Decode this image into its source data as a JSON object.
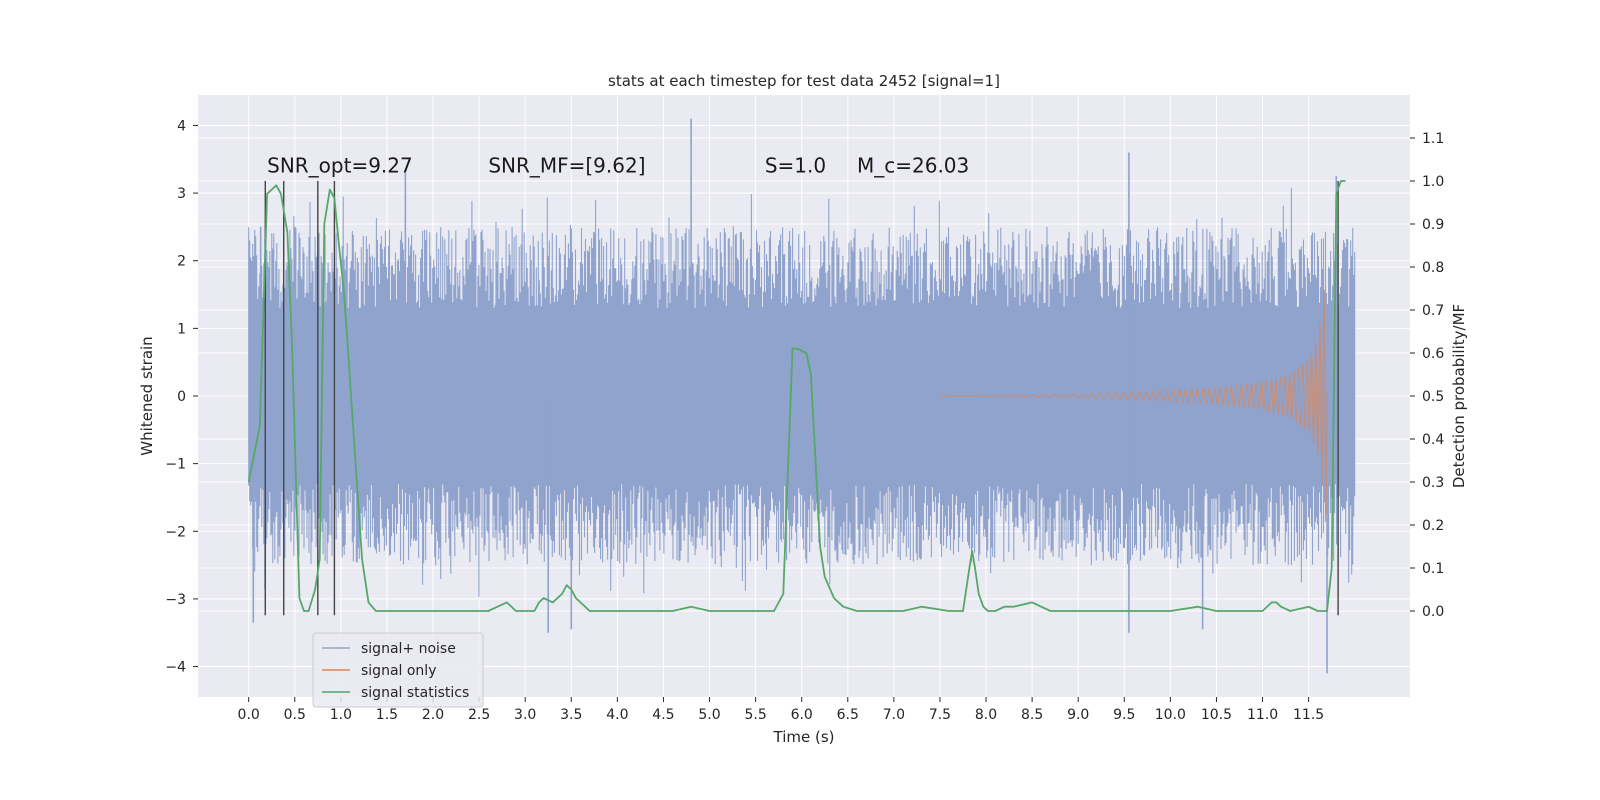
{
  "chart_data": {
    "type": "line",
    "title": "stats at each timestep for test data 2452 [signal=1]",
    "xlabel": "Time (s)",
    "ylabel": "Whitened strain",
    "y2label": "Detection probability/MF",
    "xlim": [
      -0.55,
      12.6
    ],
    "ylim": [
      -4.45,
      4.45
    ],
    "y2lim": [
      -0.2,
      1.2
    ],
    "x_ticks": [
      "0.0",
      "0.5",
      "1.0",
      "1.5",
      "2.0",
      "2.5",
      "3.0",
      "3.5",
      "4.0",
      "4.5",
      "5.0",
      "5.5",
      "6.0",
      "6.5",
      "7.0",
      "7.5",
      "8.0",
      "8.5",
      "9.0",
      "9.5",
      "10.0",
      "10.5",
      "11.0",
      "11.5"
    ],
    "y_ticks": [
      "4",
      "3",
      "2",
      "1",
      "0",
      "−1",
      "−2",
      "−3",
      "−4"
    ],
    "y_tick_values": [
      4,
      3,
      2,
      1,
      0,
      -1,
      -2,
      -3,
      -4
    ],
    "y2_ticks": [
      "1.1",
      "1.0",
      "0.9",
      "0.8",
      "0.7",
      "0.6",
      "0.5",
      "0.4",
      "0.3",
      "0.2",
      "0.1",
      "0.0"
    ],
    "y2_tick_values": [
      1.1,
      1.0,
      0.9,
      0.8,
      0.7,
      0.6,
      0.5,
      0.4,
      0.3,
      0.2,
      0.1,
      0.0
    ],
    "grid": true,
    "legend_position": "lower-left",
    "series": [
      {
        "name": "signal+ noise",
        "color": "#8fa3cc",
        "axis": "left",
        "style": "noise band",
        "x_range": [
          0.0,
          12.0
        ],
        "core_amplitude": 1.3,
        "typical_peak_amplitude": 2.5,
        "spikes": [
          {
            "x": 0.05,
            "y": -3.35
          },
          {
            "x": 0.13,
            "y": 2.5
          },
          {
            "x": 0.5,
            "y": 2.5
          },
          {
            "x": 1.7,
            "y": 3.3
          },
          {
            "x": 3.25,
            "y": -3.5
          },
          {
            "x": 3.5,
            "y": -3.45
          },
          {
            "x": 4.8,
            "y": 4.1
          },
          {
            "x": 9.55,
            "y": 3.6
          },
          {
            "x": 9.55,
            "y": -3.5
          },
          {
            "x": 10.35,
            "y": -3.45
          },
          {
            "x": 11.7,
            "y": -4.1
          },
          {
            "x": 11.8,
            "y": 3.25
          }
        ]
      },
      {
        "name": "signal only",
        "color": "#dd8452",
        "axis": "left",
        "style": "chirp",
        "envelope_x": [
          7.5,
          9.0,
          10.0,
          10.5,
          11.0,
          11.3,
          11.5,
          11.6,
          11.65,
          11.68,
          11.7
        ],
        "envelope_y": [
          0.0,
          0.03,
          0.08,
          0.12,
          0.2,
          0.32,
          0.55,
          0.9,
          1.4,
          1.75,
          1.9
        ]
      },
      {
        "name": "signal statistics",
        "color": "#55a868",
        "axis": "right",
        "style": "line",
        "x": [
          0.0,
          0.12,
          0.2,
          0.3,
          0.35,
          0.42,
          0.47,
          0.55,
          0.6,
          0.65,
          0.72,
          0.77,
          0.82,
          0.88,
          0.93,
          0.98,
          1.03,
          1.08,
          1.13,
          1.18,
          1.23,
          1.3,
          1.38,
          1.46,
          1.55,
          1.8,
          2.2,
          2.6,
          2.7,
          2.8,
          2.9,
          3.0,
          3.1,
          3.15,
          3.2,
          3.3,
          3.4,
          3.45,
          3.5,
          3.55,
          3.6,
          3.7,
          3.8,
          4.0,
          4.4,
          4.6,
          4.8,
          5.0,
          5.3,
          5.5,
          5.6,
          5.7,
          5.8,
          5.9,
          5.95,
          6.05,
          6.1,
          6.15,
          6.2,
          6.25,
          6.35,
          6.45,
          6.6,
          6.8,
          7.0,
          7.1,
          7.3,
          7.6,
          7.75,
          7.82,
          7.85,
          7.88,
          7.92,
          7.97,
          8.02,
          8.1,
          8.2,
          8.3,
          8.5,
          8.7,
          9.0,
          9.5,
          10.0,
          10.3,
          10.5,
          11.0,
          11.1,
          11.15,
          11.2,
          11.3,
          11.5,
          11.6,
          11.7,
          11.75,
          11.8,
          11.85,
          11.9
        ],
        "y": [
          0.3,
          0.43,
          0.97,
          0.99,
          0.97,
          0.88,
          0.62,
          0.03,
          0.0,
          0.0,
          0.05,
          0.12,
          0.9,
          0.98,
          0.96,
          0.85,
          0.75,
          0.6,
          0.44,
          0.28,
          0.12,
          0.02,
          0.0,
          0.0,
          0.0,
          0.0,
          0.0,
          0.0,
          0.01,
          0.02,
          0.0,
          0.0,
          0.0,
          0.02,
          0.03,
          0.02,
          0.04,
          0.06,
          0.05,
          0.03,
          0.02,
          0.0,
          0.0,
          0.0,
          0.0,
          0.0,
          0.01,
          0.0,
          0.0,
          0.0,
          0.0,
          0.0,
          0.04,
          0.61,
          0.61,
          0.6,
          0.55,
          0.35,
          0.15,
          0.08,
          0.03,
          0.01,
          0.0,
          0.0,
          0.0,
          0.0,
          0.01,
          0.0,
          0.0,
          0.1,
          0.14,
          0.1,
          0.04,
          0.01,
          0.0,
          0.0,
          0.01,
          0.01,
          0.02,
          0.0,
          0.0,
          0.0,
          0.0,
          0.01,
          0.0,
          0.0,
          0.02,
          0.02,
          0.01,
          0.0,
          0.01,
          0.0,
          0.0,
          0.1,
          0.97,
          1.0,
          1.0
        ]
      }
    ],
    "vertical_lines": [
      0.18,
      0.38,
      0.75,
      0.93,
      11.82
    ],
    "vertical_line_range": [
      -0.01,
      1.0
    ],
    "annotations": [
      {
        "text": "SNR_opt=9.27",
        "x": 0.2,
        "y2": 1.02
      },
      {
        "text": "SNR_MF=[9.62]",
        "x": 2.6,
        "y2": 1.02
      },
      {
        "text": "S=1.0",
        "x": 5.6,
        "y2": 1.02
      },
      {
        "text": "M_c=26.03",
        "x": 6.6,
        "y2": 1.02
      }
    ]
  },
  "legend": {
    "entries": [
      "signal+ noise",
      "signal only",
      "signal statistics"
    ],
    "colors": [
      "#8fa3cc",
      "#dd8452",
      "#55a868"
    ]
  }
}
